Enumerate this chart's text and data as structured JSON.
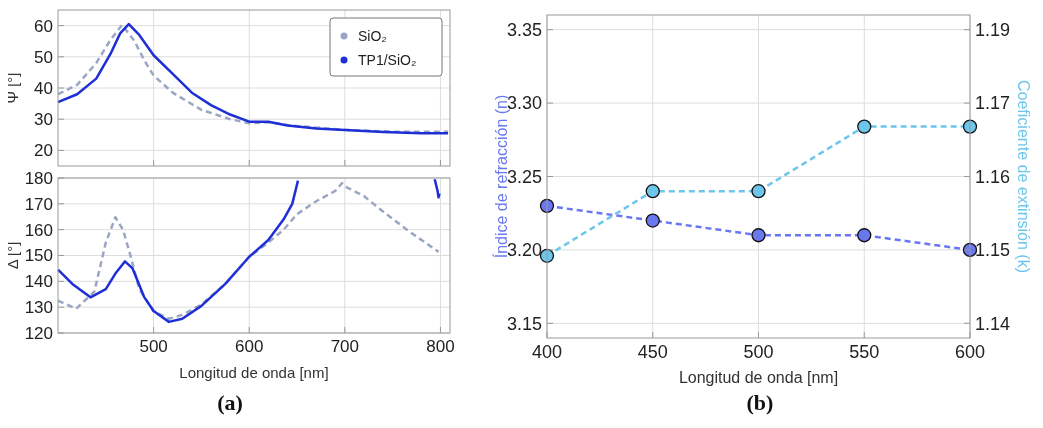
{
  "chart_data": [
    {
      "type": "line",
      "ylabel": "Ψ [°]",
      "xlim": [
        400,
        810
      ],
      "xticks": [
        500,
        600,
        700,
        800
      ],
      "ylim": [
        15,
        65
      ],
      "yticks": [
        20,
        30,
        40,
        50,
        60
      ],
      "grid": true,
      "tick_labels": "y",
      "legend": "top right",
      "series": [
        {
          "name": "SiO₂",
          "color": "#9aa6c4",
          "line_style": "dashed",
          "x": [
            400,
            420,
            440,
            455,
            467,
            480,
            490,
            500,
            520,
            550,
            580,
            600,
            620,
            650,
            700,
            750,
            808
          ],
          "values": [
            38,
            41,
            48,
            55.5,
            60.2,
            55,
            49,
            44,
            38.5,
            33,
            30,
            28.7,
            29,
            27.8,
            26.6,
            26,
            26
          ]
        },
        {
          "name": "TP1/SiO₂",
          "color": "#1f2fd6",
          "line_style": "solid",
          "x": [
            400,
            420,
            440,
            455,
            465,
            474,
            485,
            500,
            520,
            540,
            560,
            580,
            600,
            620,
            640,
            670,
            700,
            740,
            780,
            808
          ],
          "values": [
            35.5,
            38,
            43,
            51,
            57.5,
            60.5,
            57,
            50.5,
            44.5,
            38.5,
            34.5,
            31.5,
            29.2,
            29.2,
            28,
            27,
            26.5,
            25.9,
            25.5,
            25.5
          ]
        }
      ]
    },
    {
      "type": "line",
      "ylabel": "Δ [°]",
      "xlabel": "Longitud de onda [nm]",
      "xlim": [
        400,
        810
      ],
      "xticks": [
        500,
        600,
        700,
        800
      ],
      "ylim": [
        120,
        180
      ],
      "yticks": [
        120,
        130,
        140,
        150,
        160,
        170,
        180
      ],
      "grid": true,
      "annotations": [
        "(a)"
      ],
      "series": [
        {
          "color": "#9aa6c4",
          "line_style": "dashed",
          "x": [
            400,
            419,
            438,
            450,
            460,
            468,
            475,
            485,
            500,
            516,
            530,
            550,
            575,
            600,
            620,
            636,
            650,
            670,
            690,
            697,
            700,
            720,
            740,
            767,
            798
          ],
          "values": [
            132.5,
            129.4,
            136,
            155,
            164.8,
            160,
            151,
            137,
            128.4,
            125.5,
            127,
            131,
            139,
            149.5,
            155,
            160,
            166,
            171,
            175,
            178,
            176.8,
            173,
            167,
            159.4,
            151.4
          ]
        },
        {
          "color": "#1f2fd6",
          "line_style": "solid",
          "x": [
            400,
            415,
            434,
            450,
            460,
            470,
            478,
            490,
            500,
            516,
            530,
            550,
            575,
            600,
            620,
            636,
            645,
            651,
            720,
            794,
            797,
            798,
            799
          ],
          "values": [
            144.5,
            139,
            133.8,
            137,
            143,
            147.7,
            145,
            134,
            128.5,
            124.3,
            125.5,
            130.5,
            139,
            149.5,
            156,
            164,
            170,
            179,
            null,
            179.5,
            175,
            172.5,
            174
          ]
        }
      ]
    },
    {
      "type": "line",
      "xlabel": "Longitud de onda [nm]",
      "ylabel": "Índice de refracción (n)",
      "y2label": "Coeficiente de extinsión (k)",
      "x": [
        400,
        450,
        500,
        550,
        600
      ],
      "xlim": [
        400,
        600
      ],
      "xticks": [
        400,
        450,
        500,
        550,
        600
      ],
      "ylim": [
        3.14,
        3.36
      ],
      "yticks": [
        3.15,
        {
          "value": 3.2,
          "label": "3.20"
        },
        3.25,
        {
          "value": 3.3,
          "label": "3.30"
        },
        3.35
      ],
      "y2lim": [
        1.135,
        1.19
      ],
      "y2ticks": [
        {
          "value": 1.1375,
          "label": "1.14"
        },
        {
          "value": 1.15,
          "label": "1.15"
        },
        {
          "value": 1.1625,
          "label": "1.16"
        },
        {
          "value": 1.175,
          "label": "1.17"
        },
        {
          "value": 1.1875,
          "label": "1.19"
        }
      ],
      "grid": true,
      "marker": "circle",
      "line_style": "dashed",
      "annotations": [
        "(b)"
      ],
      "series": [
        {
          "color": "#6a78f0",
          "values": [
            3.23,
            3.22,
            3.21,
            3.21,
            3.2
          ]
        },
        {
          "color": "#6cc6ec",
          "axis": "y2",
          "values": [
            1.149,
            1.16,
            1.16,
            1.171,
            1.171
          ]
        }
      ]
    }
  ]
}
